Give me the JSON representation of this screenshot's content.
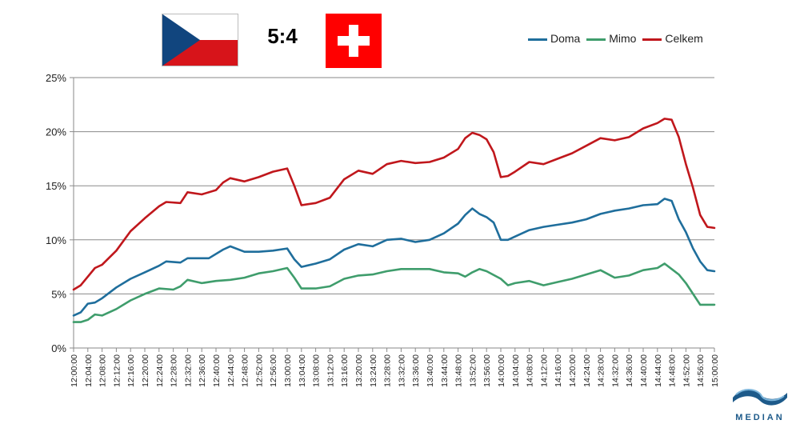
{
  "match": {
    "score": "5:4",
    "home_flag": "czech-republic",
    "away_flag": "switzerland"
  },
  "chart_data": {
    "type": "line",
    "title": "",
    "xlabel": "",
    "ylabel": "",
    "ylim": [
      0,
      25
    ],
    "yticks": [
      "0%",
      "5%",
      "10%",
      "15%",
      "20%",
      "25%"
    ],
    "x_start": "12:00:00",
    "x_end": "15:00:00",
    "x_tick_labels": [
      "12:00:00",
      "12:04:00",
      "12:08:00",
      "12:12:00",
      "12:16:00",
      "12:20:00",
      "12:24:00",
      "12:28:00",
      "12:32:00",
      "12:36:00",
      "12:40:00",
      "12:44:00",
      "12:48:00",
      "12:52:00",
      "12:56:00",
      "13:00:00",
      "13:04:00",
      "13:08:00",
      "13:12:00",
      "13:16:00",
      "13:20:00",
      "13:24:00",
      "13:28:00",
      "13:32:00",
      "13:36:00",
      "13:40:00",
      "13:44:00",
      "13:48:00",
      "13:52:00",
      "13:56:00",
      "14:00:00",
      "14:04:00",
      "14:08:00",
      "14:12:00",
      "14:16:00",
      "14:20:00",
      "14:24:00",
      "14:28:00",
      "14:32:00",
      "14:36:00",
      "14:40:00",
      "14:44:00",
      "14:48:00",
      "14:52:00",
      "14:56:00",
      "15:00:00"
    ],
    "grid": true,
    "legend_position": "top-right",
    "series": [
      {
        "name": "Doma",
        "color": "#1f6e9c",
        "points": [
          [
            "12:00:00",
            3.0
          ],
          [
            "12:02:00",
            3.3
          ],
          [
            "12:04:00",
            4.1
          ],
          [
            "12:06:00",
            4.2
          ],
          [
            "12:08:00",
            4.6
          ],
          [
            "12:12:00",
            5.6
          ],
          [
            "12:16:00",
            6.4
          ],
          [
            "12:20:00",
            7.0
          ],
          [
            "12:24:00",
            7.6
          ],
          [
            "12:26:00",
            8.0
          ],
          [
            "12:30:00",
            7.9
          ],
          [
            "12:32:00",
            8.3
          ],
          [
            "12:36:00",
            8.3
          ],
          [
            "12:38:00",
            8.3
          ],
          [
            "12:42:00",
            9.1
          ],
          [
            "12:44:00",
            9.4
          ],
          [
            "12:48:00",
            8.9
          ],
          [
            "12:52:00",
            8.9
          ],
          [
            "12:56:00",
            9.0
          ],
          [
            "13:00:00",
            9.2
          ],
          [
            "13:02:00",
            8.2
          ],
          [
            "13:04:00",
            7.5
          ],
          [
            "13:08:00",
            7.8
          ],
          [
            "13:12:00",
            8.2
          ],
          [
            "13:16:00",
            9.1
          ],
          [
            "13:20:00",
            9.6
          ],
          [
            "13:24:00",
            9.4
          ],
          [
            "13:28:00",
            10.0
          ],
          [
            "13:32:00",
            10.1
          ],
          [
            "13:36:00",
            9.8
          ],
          [
            "13:40:00",
            10.0
          ],
          [
            "13:44:00",
            10.6
          ],
          [
            "13:48:00",
            11.5
          ],
          [
            "13:50:00",
            12.3
          ],
          [
            "13:52:00",
            12.9
          ],
          [
            "13:54:00",
            12.4
          ],
          [
            "13:56:00",
            12.1
          ],
          [
            "13:58:00",
            11.6
          ],
          [
            "14:00:00",
            10.0
          ],
          [
            "14:02:00",
            10.0
          ],
          [
            "14:04:00",
            10.3
          ],
          [
            "14:08:00",
            10.9
          ],
          [
            "14:12:00",
            11.2
          ],
          [
            "14:16:00",
            11.4
          ],
          [
            "14:20:00",
            11.6
          ],
          [
            "14:24:00",
            11.9
          ],
          [
            "14:28:00",
            12.4
          ],
          [
            "14:32:00",
            12.7
          ],
          [
            "14:36:00",
            12.9
          ],
          [
            "14:40:00",
            13.2
          ],
          [
            "14:44:00",
            13.3
          ],
          [
            "14:46:00",
            13.8
          ],
          [
            "14:48:00",
            13.6
          ],
          [
            "14:50:00",
            11.9
          ],
          [
            "14:52:00",
            10.7
          ],
          [
            "14:54:00",
            9.2
          ],
          [
            "14:56:00",
            8.0
          ],
          [
            "14:58:00",
            7.2
          ],
          [
            "15:00:00",
            7.1
          ]
        ]
      },
      {
        "name": "Mimo",
        "color": "#3f9d6c",
        "points": [
          [
            "12:00:00",
            2.4
          ],
          [
            "12:02:00",
            2.4
          ],
          [
            "12:04:00",
            2.6
          ],
          [
            "12:06:00",
            3.1
          ],
          [
            "12:08:00",
            3.0
          ],
          [
            "12:12:00",
            3.6
          ],
          [
            "12:16:00",
            4.4
          ],
          [
            "12:20:00",
            5.0
          ],
          [
            "12:24:00",
            5.5
          ],
          [
            "12:28:00",
            5.4
          ],
          [
            "12:30:00",
            5.7
          ],
          [
            "12:32:00",
            6.3
          ],
          [
            "12:36:00",
            6.0
          ],
          [
            "12:40:00",
            6.2
          ],
          [
            "12:44:00",
            6.3
          ],
          [
            "12:48:00",
            6.5
          ],
          [
            "12:52:00",
            6.9
          ],
          [
            "12:56:00",
            7.1
          ],
          [
            "13:00:00",
            7.4
          ],
          [
            "13:02:00",
            6.5
          ],
          [
            "13:04:00",
            5.5
          ],
          [
            "13:08:00",
            5.5
          ],
          [
            "13:12:00",
            5.7
          ],
          [
            "13:16:00",
            6.4
          ],
          [
            "13:20:00",
            6.7
          ],
          [
            "13:24:00",
            6.8
          ],
          [
            "13:28:00",
            7.1
          ],
          [
            "13:32:00",
            7.3
          ],
          [
            "13:36:00",
            7.3
          ],
          [
            "13:40:00",
            7.3
          ],
          [
            "13:44:00",
            7.0
          ],
          [
            "13:48:00",
            6.9
          ],
          [
            "13:50:00",
            6.6
          ],
          [
            "13:52:00",
            7.0
          ],
          [
            "13:54:00",
            7.3
          ],
          [
            "13:56:00",
            7.1
          ],
          [
            "14:00:00",
            6.4
          ],
          [
            "14:02:00",
            5.8
          ],
          [
            "14:04:00",
            6.0
          ],
          [
            "14:08:00",
            6.2
          ],
          [
            "14:12:00",
            5.8
          ],
          [
            "14:16:00",
            6.1
          ],
          [
            "14:20:00",
            6.4
          ],
          [
            "14:24:00",
            6.8
          ],
          [
            "14:28:00",
            7.2
          ],
          [
            "14:32:00",
            6.5
          ],
          [
            "14:36:00",
            6.7
          ],
          [
            "14:40:00",
            7.2
          ],
          [
            "14:44:00",
            7.4
          ],
          [
            "14:46:00",
            7.8
          ],
          [
            "14:48:00",
            7.3
          ],
          [
            "14:50:00",
            6.8
          ],
          [
            "14:52:00",
            6.0
          ],
          [
            "14:54:00",
            5.0
          ],
          [
            "14:56:00",
            4.0
          ],
          [
            "14:58:00",
            4.0
          ],
          [
            "15:00:00",
            4.0
          ]
        ]
      },
      {
        "name": "Celkem",
        "color": "#c0171c",
        "points": [
          [
            "12:00:00",
            5.4
          ],
          [
            "12:02:00",
            5.8
          ],
          [
            "12:04:00",
            6.6
          ],
          [
            "12:06:00",
            7.4
          ],
          [
            "12:08:00",
            7.7
          ],
          [
            "12:12:00",
            9.0
          ],
          [
            "12:16:00",
            10.8
          ],
          [
            "12:20:00",
            12.0
          ],
          [
            "12:24:00",
            13.1
          ],
          [
            "12:26:00",
            13.5
          ],
          [
            "12:30:00",
            13.4
          ],
          [
            "12:32:00",
            14.4
          ],
          [
            "12:36:00",
            14.2
          ],
          [
            "12:40:00",
            14.6
          ],
          [
            "12:42:00",
            15.3
          ],
          [
            "12:44:00",
            15.7
          ],
          [
            "12:48:00",
            15.4
          ],
          [
            "12:52:00",
            15.8
          ],
          [
            "12:56:00",
            16.3
          ],
          [
            "13:00:00",
            16.6
          ],
          [
            "13:02:00",
            15.0
          ],
          [
            "13:04:00",
            13.2
          ],
          [
            "13:08:00",
            13.4
          ],
          [
            "13:12:00",
            13.9
          ],
          [
            "13:16:00",
            15.6
          ],
          [
            "13:20:00",
            16.4
          ],
          [
            "13:24:00",
            16.1
          ],
          [
            "13:28:00",
            17.0
          ],
          [
            "13:32:00",
            17.3
          ],
          [
            "13:36:00",
            17.1
          ],
          [
            "13:40:00",
            17.2
          ],
          [
            "13:44:00",
            17.6
          ],
          [
            "13:48:00",
            18.4
          ],
          [
            "13:50:00",
            19.4
          ],
          [
            "13:52:00",
            19.9
          ],
          [
            "13:54:00",
            19.7
          ],
          [
            "13:56:00",
            19.3
          ],
          [
            "13:58:00",
            18.1
          ],
          [
            "14:00:00",
            15.8
          ],
          [
            "14:02:00",
            15.9
          ],
          [
            "14:04:00",
            16.3
          ],
          [
            "14:08:00",
            17.2
          ],
          [
            "14:12:00",
            17.0
          ],
          [
            "14:16:00",
            17.5
          ],
          [
            "14:20:00",
            18.0
          ],
          [
            "14:24:00",
            18.7
          ],
          [
            "14:28:00",
            19.4
          ],
          [
            "14:32:00",
            19.2
          ],
          [
            "14:36:00",
            19.5
          ],
          [
            "14:40:00",
            20.3
          ],
          [
            "14:44:00",
            20.8
          ],
          [
            "14:46:00",
            21.2
          ],
          [
            "14:48:00",
            21.1
          ],
          [
            "14:50:00",
            19.5
          ],
          [
            "14:52:00",
            17.0
          ],
          [
            "14:54:00",
            14.8
          ],
          [
            "14:56:00",
            12.3
          ],
          [
            "14:58:00",
            11.2
          ],
          [
            "15:00:00",
            11.1
          ]
        ]
      }
    ]
  },
  "brand": {
    "name": "MEDIAN",
    "color": "#1d5a8a"
  }
}
